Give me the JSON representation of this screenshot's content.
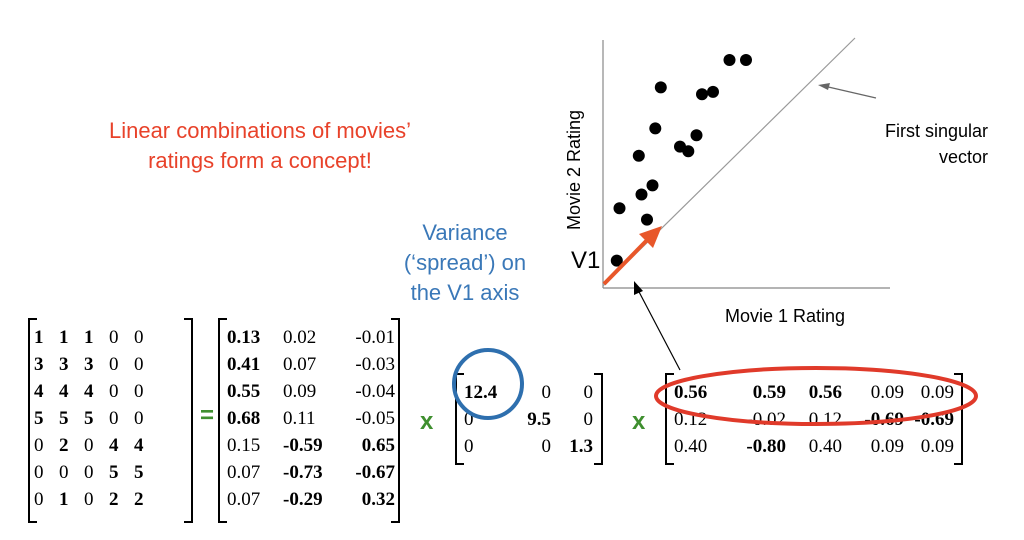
{
  "texts": {
    "concept_line1": "Linear combinations of movies’",
    "concept_line2": "ratings form a concept!",
    "variance_line1": "Variance",
    "variance_line2": "(‘spread’) on",
    "variance_line3": "the V1 axis",
    "v1_label": "V1",
    "singular_line1": "First singular",
    "singular_line2": "vector",
    "equals": "=",
    "times1": "x",
    "times2": "x"
  },
  "chart_data": {
    "type": "scatter",
    "xlabel": "Movie 1 Rating",
    "ylabel": "Movie 2 Rating",
    "points": [
      [
        0.05,
        0.12
      ],
      [
        0.06,
        0.35
      ],
      [
        0.13,
        0.58
      ],
      [
        0.14,
        0.41
      ],
      [
        0.16,
        0.3
      ],
      [
        0.19,
        0.7
      ],
      [
        0.21,
        0.88
      ],
      [
        0.18,
        0.45
      ],
      [
        0.28,
        0.62
      ],
      [
        0.31,
        0.6
      ],
      [
        0.34,
        0.67
      ],
      [
        0.36,
        0.85
      ],
      [
        0.4,
        0.86
      ],
      [
        0.46,
        1.0
      ],
      [
        0.52,
        1.0
      ]
    ],
    "grid": false
  },
  "matrices": {
    "A": [
      [
        "1",
        "1",
        "1",
        "0",
        "0"
      ],
      [
        "3",
        "3",
        "3",
        "0",
        "0"
      ],
      [
        "4",
        "4",
        "4",
        "0",
        "0"
      ],
      [
        "5",
        "5",
        "5",
        "0",
        "0"
      ],
      [
        "0",
        "2",
        "0",
        "4",
        "4"
      ],
      [
        "0",
        "0",
        "0",
        "5",
        "5"
      ],
      [
        "0",
        "1",
        "0",
        "2",
        "2"
      ]
    ],
    "A_bold": [
      [
        1,
        1,
        1,
        0,
        0
      ],
      [
        1,
        1,
        1,
        0,
        0
      ],
      [
        1,
        1,
        1,
        0,
        0
      ],
      [
        1,
        1,
        1,
        0,
        0
      ],
      [
        0,
        1,
        0,
        1,
        1
      ],
      [
        0,
        0,
        0,
        1,
        1
      ],
      [
        0,
        1,
        0,
        1,
        1
      ]
    ],
    "U": [
      [
        "0.13",
        "0.02",
        "-0.01"
      ],
      [
        "0.41",
        "0.07",
        "-0.03"
      ],
      [
        "0.55",
        "0.09",
        "-0.04"
      ],
      [
        "0.68",
        "0.11",
        "-0.05"
      ],
      [
        "0.15",
        "-0.59",
        "0.65"
      ],
      [
        "0.07",
        "-0.73",
        "-0.67"
      ],
      [
        "0.07",
        "-0.29",
        "0.32"
      ]
    ],
    "U_bold": [
      [
        1,
        0,
        0
      ],
      [
        1,
        0,
        0
      ],
      [
        1,
        0,
        0
      ],
      [
        1,
        0,
        0
      ],
      [
        0,
        1,
        1
      ],
      [
        0,
        1,
        1
      ],
      [
        0,
        1,
        1
      ]
    ],
    "S": [
      [
        "12.4",
        "0",
        "0"
      ],
      [
        "0",
        "9.5",
        "0"
      ],
      [
        "0",
        "0",
        "1.3"
      ]
    ],
    "S_bold": [
      [
        1,
        0,
        0
      ],
      [
        0,
        1,
        0
      ],
      [
        0,
        0,
        1
      ]
    ],
    "V": [
      [
        "0.56",
        "0.59",
        "0.56",
        "0.09",
        "0.09"
      ],
      [
        "0.12",
        "-0.02",
        "0.12",
        "-0.69",
        "-0.69"
      ],
      [
        "0.40",
        "-0.80",
        "0.40",
        "0.09",
        "0.09"
      ]
    ],
    "V_bold": [
      [
        1,
        1,
        1,
        0,
        0
      ],
      [
        0,
        0,
        0,
        1,
        1
      ],
      [
        0,
        1,
        0,
        0,
        0
      ]
    ]
  },
  "colors": {
    "red": "#e8422a",
    "blue": "#3a78b8",
    "green": "#3f8f2f",
    "arrow": "#e8572a",
    "ellipse": "#e03a2a",
    "circle": "#2e6fae"
  }
}
